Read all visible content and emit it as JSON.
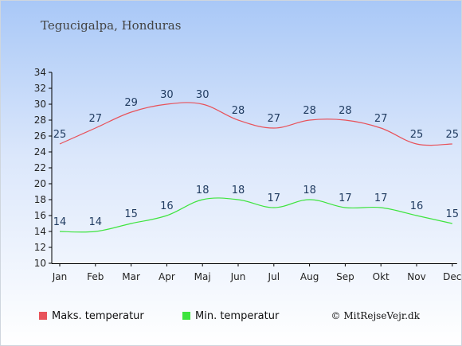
{
  "title": "Tegucigalpa, Honduras",
  "copyright": "© MitRejseVejr.dk",
  "chart_data": {
    "type": "line",
    "categories": [
      "Jan",
      "Feb",
      "Mar",
      "Apr",
      "Maj",
      "Jun",
      "Jul",
      "Aug",
      "Sep",
      "Okt",
      "Nov",
      "Dec"
    ],
    "series": [
      {
        "name": "Maks. temperatur",
        "color": "#e8525a",
        "values": [
          25,
          27,
          29,
          30,
          30,
          28,
          27,
          28,
          28,
          27,
          25,
          25
        ]
      },
      {
        "name": "Min. temperatur",
        "color": "#3ee43e",
        "values": [
          14,
          14,
          15,
          16,
          18,
          18,
          17,
          18,
          17,
          17,
          16,
          15
        ]
      }
    ],
    "ylim": [
      10,
      34
    ],
    "yticks": [
      10,
      12,
      14,
      16,
      18,
      20,
      22,
      24,
      26,
      28,
      30,
      32,
      34
    ],
    "grid": false,
    "legend": "bottom"
  }
}
